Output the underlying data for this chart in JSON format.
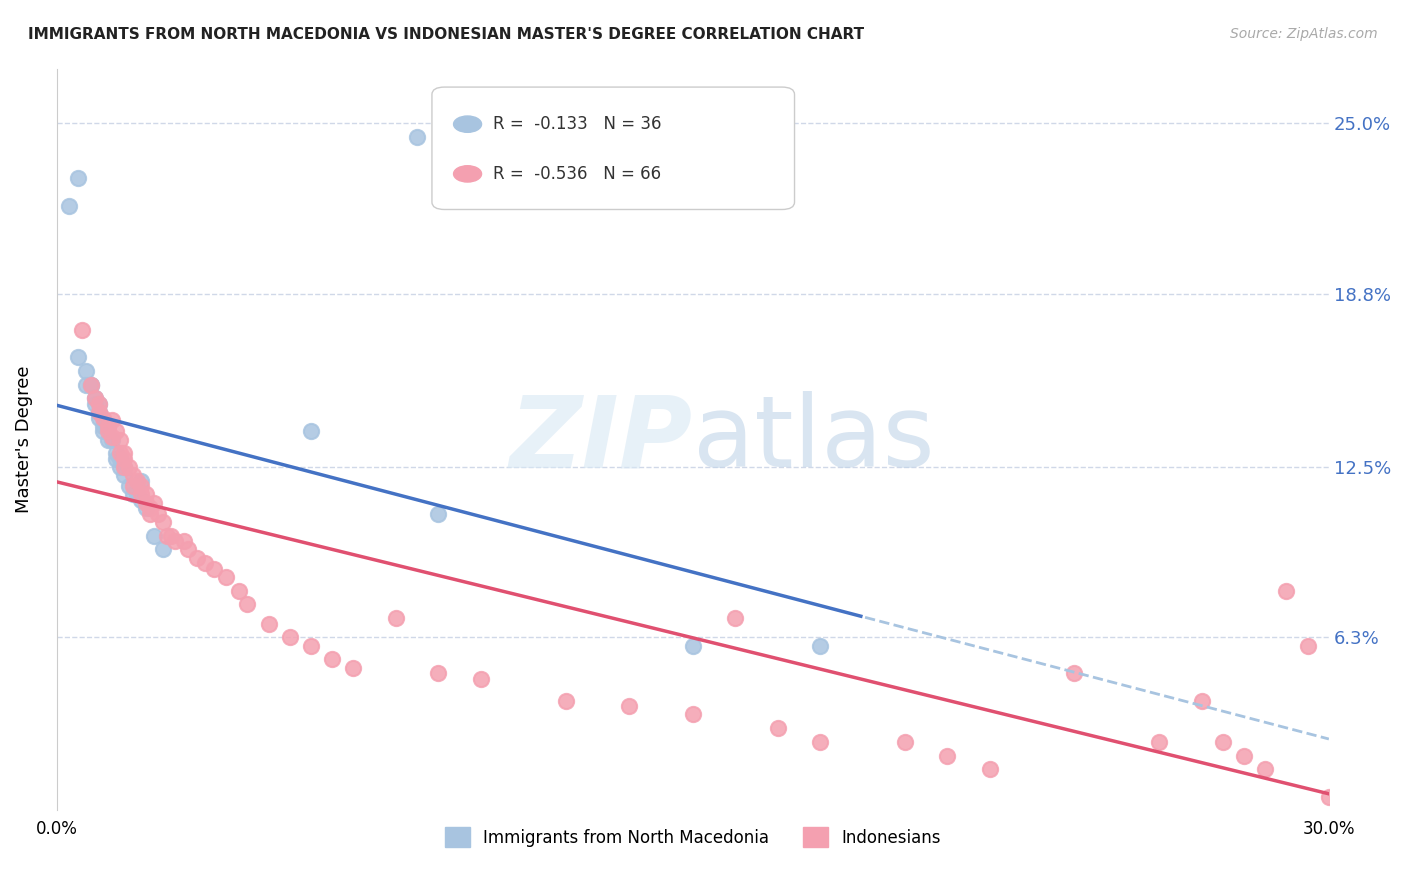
{
  "title": "IMMIGRANTS FROM NORTH MACEDONIA VS INDONESIAN MASTER'S DEGREE CORRELATION CHART",
  "source": "Source: ZipAtlas.com",
  "ylabel": "Master's Degree",
  "ytick_labels": [
    "25.0%",
    "18.8%",
    "12.5%",
    "6.3%"
  ],
  "ytick_values": [
    0.25,
    0.188,
    0.125,
    0.063
  ],
  "xlim": [
    0.0,
    0.3
  ],
  "ylim": [
    0.0,
    0.27
  ],
  "legend_blue_r": "-0.133",
  "legend_blue_n": "36",
  "legend_pink_r": "-0.536",
  "legend_pink_n": "66",
  "legend_label_blue": "Immigrants from North Macedonia",
  "legend_label_pink": "Indonesians",
  "blue_color": "#a8c4e0",
  "pink_color": "#f4a0b0",
  "blue_line_color": "#4472c4",
  "pink_line_color": "#e05070",
  "blue_dash_color": "#a8c4e0",
  "grid_color": "#d0d8e8",
  "background_color": "#ffffff",
  "blue_scatter_x": [
    0.005,
    0.003,
    0.005,
    0.007,
    0.007,
    0.008,
    0.008,
    0.009,
    0.009,
    0.01,
    0.01,
    0.01,
    0.011,
    0.011,
    0.012,
    0.012,
    0.013,
    0.014,
    0.014,
    0.015,
    0.015,
    0.016,
    0.016,
    0.017,
    0.018,
    0.019,
    0.02,
    0.02,
    0.021,
    0.023,
    0.025,
    0.06,
    0.085,
    0.09,
    0.15,
    0.18
  ],
  "blue_scatter_y": [
    0.23,
    0.22,
    0.165,
    0.16,
    0.155,
    0.155,
    0.155,
    0.15,
    0.148,
    0.148,
    0.145,
    0.143,
    0.14,
    0.138,
    0.14,
    0.135,
    0.135,
    0.13,
    0.128,
    0.128,
    0.125,
    0.125,
    0.122,
    0.118,
    0.115,
    0.115,
    0.12,
    0.113,
    0.11,
    0.1,
    0.095,
    0.138,
    0.245,
    0.108,
    0.06,
    0.06
  ],
  "pink_scatter_x": [
    0.006,
    0.008,
    0.009,
    0.01,
    0.01,
    0.011,
    0.012,
    0.012,
    0.013,
    0.013,
    0.014,
    0.015,
    0.015,
    0.016,
    0.016,
    0.016,
    0.017,
    0.018,
    0.018,
    0.019,
    0.02,
    0.02,
    0.021,
    0.021,
    0.022,
    0.022,
    0.023,
    0.024,
    0.025,
    0.026,
    0.027,
    0.028,
    0.03,
    0.031,
    0.033,
    0.035,
    0.037,
    0.04,
    0.043,
    0.045,
    0.05,
    0.055,
    0.06,
    0.065,
    0.07,
    0.08,
    0.09,
    0.1,
    0.12,
    0.135,
    0.15,
    0.16,
    0.17,
    0.18,
    0.2,
    0.21,
    0.22,
    0.24,
    0.26,
    0.27,
    0.275,
    0.28,
    0.285,
    0.29,
    0.295,
    0.3
  ],
  "pink_scatter_y": [
    0.175,
    0.155,
    0.15,
    0.148,
    0.145,
    0.143,
    0.14,
    0.138,
    0.142,
    0.136,
    0.138,
    0.135,
    0.13,
    0.13,
    0.128,
    0.125,
    0.125,
    0.122,
    0.118,
    0.12,
    0.118,
    0.115,
    0.115,
    0.112,
    0.11,
    0.108,
    0.112,
    0.108,
    0.105,
    0.1,
    0.1,
    0.098,
    0.098,
    0.095,
    0.092,
    0.09,
    0.088,
    0.085,
    0.08,
    0.075,
    0.068,
    0.063,
    0.06,
    0.055,
    0.052,
    0.07,
    0.05,
    0.048,
    0.04,
    0.038,
    0.035,
    0.07,
    0.03,
    0.025,
    0.025,
    0.02,
    0.015,
    0.05,
    0.025,
    0.04,
    0.025,
    0.02,
    0.015,
    0.08,
    0.06,
    0.005
  ]
}
